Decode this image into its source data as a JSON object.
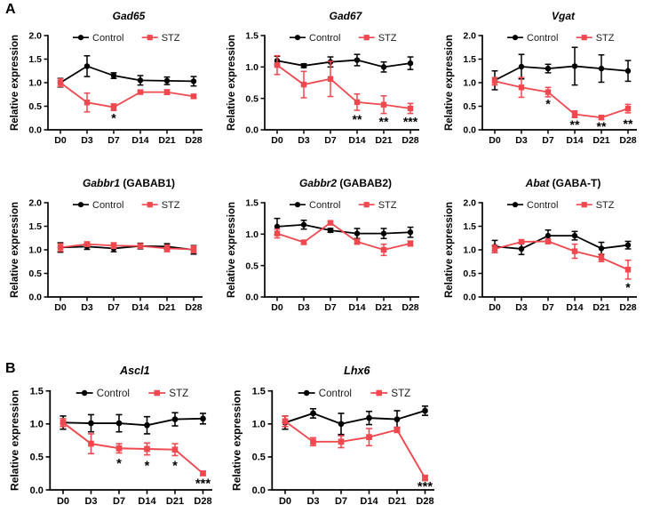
{
  "figure": {
    "panels": [
      {
        "label": "A"
      },
      {
        "label": "B"
      }
    ]
  },
  "colors": {
    "control": "#000000",
    "stz": "#F0484E",
    "axis": "#000000",
    "background": "#ffffff"
  },
  "legend": {
    "control_label": "Control",
    "stz_label": "STZ"
  },
  "chart_data": [
    {
      "type": "line",
      "title_italic": "Gad65",
      "title_rest": "",
      "ylabel": "Relative expression",
      "categories": [
        "D0",
        "D3",
        "D7",
        "D14",
        "D21",
        "D28"
      ],
      "ylim": [
        0,
        2.0
      ],
      "yticks": [
        0,
        0.5,
        1.0,
        1.5,
        2.0
      ],
      "series": [
        {
          "name": "Control",
          "marker": "circle",
          "color": "#000000",
          "values": [
            1.0,
            1.35,
            1.15,
            1.05,
            1.04,
            1.03
          ],
          "errors": [
            0.09,
            0.22,
            0.06,
            0.1,
            0.08,
            0.1
          ]
        },
        {
          "name": "STZ",
          "marker": "square",
          "color": "#F0484E",
          "values": [
            1.0,
            0.58,
            0.48,
            0.8,
            0.8,
            0.71
          ],
          "errors": [
            0.08,
            0.2,
            0.07,
            0.03,
            0.05,
            0.04
          ]
        }
      ],
      "annotations": [
        {
          "i": 2,
          "y": 0.25,
          "text": "*"
        }
      ]
    },
    {
      "type": "line",
      "title_italic": "Gad67",
      "title_rest": "",
      "ylabel": "Relative expression",
      "categories": [
        "D0",
        "D3",
        "D7",
        "D14",
        "D21",
        "D28"
      ],
      "ylim": [
        0,
        1.5
      ],
      "yticks": [
        0,
        0.5,
        1.0,
        1.5
      ],
      "series": [
        {
          "name": "Control",
          "marker": "circle",
          "color": "#000000",
          "values": [
            1.1,
            1.02,
            1.08,
            1.11,
            1.0,
            1.06
          ],
          "errors": [
            0.07,
            0.03,
            0.08,
            0.09,
            0.08,
            0.1
          ]
        },
        {
          "name": "STZ",
          "marker": "square",
          "color": "#F0484E",
          "values": [
            1.03,
            0.72,
            0.81,
            0.44,
            0.4,
            0.34
          ],
          "errors": [
            0.15,
            0.21,
            0.28,
            0.13,
            0.14,
            0.08
          ]
        }
      ],
      "annotations": [
        {
          "i": 3,
          "y": 0.16,
          "text": "**"
        },
        {
          "i": 4,
          "y": 0.13,
          "text": "**"
        },
        {
          "i": 5,
          "y": 0.13,
          "text": "***"
        }
      ]
    },
    {
      "type": "line",
      "title_italic": "Vgat",
      "title_rest": "",
      "ylabel": "Relative expression",
      "categories": [
        "D0",
        "D3",
        "D7",
        "D14",
        "D21",
        "D28"
      ],
      "ylim": [
        0,
        2.0
      ],
      "yticks": [
        0,
        0.5,
        1.0,
        1.5,
        2.0
      ],
      "series": [
        {
          "name": "Control",
          "marker": "circle",
          "color": "#000000",
          "values": [
            1.05,
            1.34,
            1.3,
            1.35,
            1.3,
            1.25
          ],
          "errors": [
            0.2,
            0.26,
            0.09,
            0.4,
            0.29,
            0.22
          ]
        },
        {
          "name": "STZ",
          "marker": "square",
          "color": "#F0484E",
          "values": [
            1.03,
            0.9,
            0.8,
            0.33,
            0.26,
            0.45
          ],
          "errors": [
            0.08,
            0.21,
            0.1,
            0.07,
            0.04,
            0.09
          ]
        }
      ],
      "annotations": [
        {
          "i": 2,
          "y": 0.55,
          "text": "*"
        },
        {
          "i": 3,
          "y": 0.1,
          "text": "**"
        },
        {
          "i": 4,
          "y": 0.07,
          "text": "**"
        },
        {
          "i": 5,
          "y": 0.12,
          "text": "**"
        }
      ]
    },
    {
      "type": "line",
      "title_italic": "Gabbr1",
      "title_rest": " (GABAB1)",
      "ylabel": "Relative expression",
      "categories": [
        "D0",
        "D3",
        "D7",
        "D14",
        "D21",
        "D28"
      ],
      "ylim": [
        0,
        2.0
      ],
      "yticks": [
        0,
        0.5,
        1.0,
        1.5,
        2.0
      ],
      "series": [
        {
          "name": "Control",
          "marker": "circle",
          "color": "#000000",
          "values": [
            1.05,
            1.07,
            1.03,
            1.08,
            1.07,
            1.0
          ],
          "errors": [
            0.1,
            0.06,
            0.07,
            0.06,
            0.06,
            0.09
          ]
        },
        {
          "name": "STZ",
          "marker": "square",
          "color": "#F0484E",
          "values": [
            1.05,
            1.12,
            1.09,
            1.08,
            1.03,
            1.01
          ],
          "errors": [
            0.08,
            0.05,
            0.06,
            0.05,
            0.07,
            0.07
          ]
        }
      ],
      "annotations": []
    },
    {
      "type": "line",
      "title_italic": "Gabbr2",
      "title_rest": " (GABAB2)",
      "ylabel": "Relative expression",
      "categories": [
        "D0",
        "D3",
        "D7",
        "D14",
        "D21",
        "D28"
      ],
      "ylim": [
        0,
        1.5
      ],
      "yticks": [
        0,
        0.5,
        1.0,
        1.5
      ],
      "series": [
        {
          "name": "Control",
          "marker": "circle",
          "color": "#000000",
          "values": [
            1.12,
            1.15,
            1.06,
            1.01,
            1.01,
            1.03
          ],
          "errors": [
            0.13,
            0.07,
            0.03,
            0.08,
            0.08,
            0.08
          ]
        },
        {
          "name": "STZ",
          "marker": "square",
          "color": "#F0484E",
          "values": [
            1.01,
            0.87,
            1.18,
            0.88,
            0.75,
            0.85
          ],
          "errors": [
            0.07,
            0.03,
            0.02,
            0.04,
            0.09,
            0.04
          ]
        }
      ],
      "annotations": []
    },
    {
      "type": "line",
      "title_italic": "Abat",
      "title_rest": " (GABA-T)",
      "ylabel": "Relative expression",
      "categories": [
        "D0",
        "D3",
        "D7",
        "D14",
        "D21",
        "D28"
      ],
      "ylim": [
        0,
        2.0
      ],
      "yticks": [
        0,
        0.5,
        1.0,
        1.5,
        2.0
      ],
      "series": [
        {
          "name": "Control",
          "marker": "circle",
          "color": "#000000",
          "values": [
            1.07,
            1.02,
            1.3,
            1.3,
            1.03,
            1.1
          ],
          "errors": [
            0.13,
            0.12,
            0.12,
            0.09,
            0.13,
            0.08
          ]
        },
        {
          "name": "STZ",
          "marker": "square",
          "color": "#F0484E",
          "values": [
            1.02,
            1.17,
            1.18,
            0.97,
            0.83,
            0.58
          ],
          "errors": [
            0.08,
            0.04,
            0.05,
            0.15,
            0.08,
            0.2
          ]
        }
      ],
      "annotations": [
        {
          "i": 5,
          "y": 0.2,
          "text": "*"
        }
      ]
    },
    {
      "type": "line",
      "title_italic": "Ascl1",
      "title_rest": "",
      "ylabel": "Relative expression",
      "categories": [
        "D0",
        "D3",
        "D7",
        "D14",
        "D21",
        "D28"
      ],
      "ylim": [
        0,
        1.5
      ],
      "yticks": [
        0,
        0.5,
        1.0,
        1.5
      ],
      "series": [
        {
          "name": "Control",
          "marker": "circle",
          "color": "#000000",
          "values": [
            1.02,
            1.01,
            1.01,
            0.98,
            1.07,
            1.08
          ],
          "errors": [
            0.1,
            0.13,
            0.13,
            0.13,
            0.1,
            0.08
          ]
        },
        {
          "name": "STZ",
          "marker": "square",
          "color": "#F0484E",
          "values": [
            1.02,
            0.7,
            0.63,
            0.62,
            0.61,
            0.25
          ],
          "errors": [
            0.06,
            0.15,
            0.07,
            0.09,
            0.09,
            0.03
          ]
        }
      ],
      "annotations": [
        {
          "i": 2,
          "y": 0.4,
          "text": "*"
        },
        {
          "i": 3,
          "y": 0.37,
          "text": "*"
        },
        {
          "i": 4,
          "y": 0.37,
          "text": "*"
        },
        {
          "i": 5,
          "y": 0.1,
          "text": "***"
        }
      ]
    },
    {
      "type": "line",
      "title_italic": "Lhx6",
      "title_rest": "",
      "ylabel": "Relative expression",
      "categories": [
        "D0",
        "D3",
        "D7",
        "D14",
        "D21",
        "D28"
      ],
      "ylim": [
        0,
        1.5
      ],
      "yticks": [
        0,
        0.5,
        1.0,
        1.5
      ],
      "series": [
        {
          "name": "Control",
          "marker": "circle",
          "color": "#000000",
          "values": [
            1.02,
            1.16,
            1.0,
            1.09,
            1.07,
            1.2
          ],
          "errors": [
            0.1,
            0.07,
            0.16,
            0.1,
            0.13,
            0.07
          ]
        },
        {
          "name": "STZ",
          "marker": "square",
          "color": "#F0484E",
          "values": [
            1.04,
            0.73,
            0.73,
            0.8,
            0.91,
            0.18
          ],
          "errors": [
            0.08,
            0.06,
            0.09,
            0.13,
            0.04,
            0.04
          ]
        }
      ],
      "annotations": [
        {
          "i": 5,
          "y": 0.05,
          "text": "***"
        }
      ]
    }
  ]
}
